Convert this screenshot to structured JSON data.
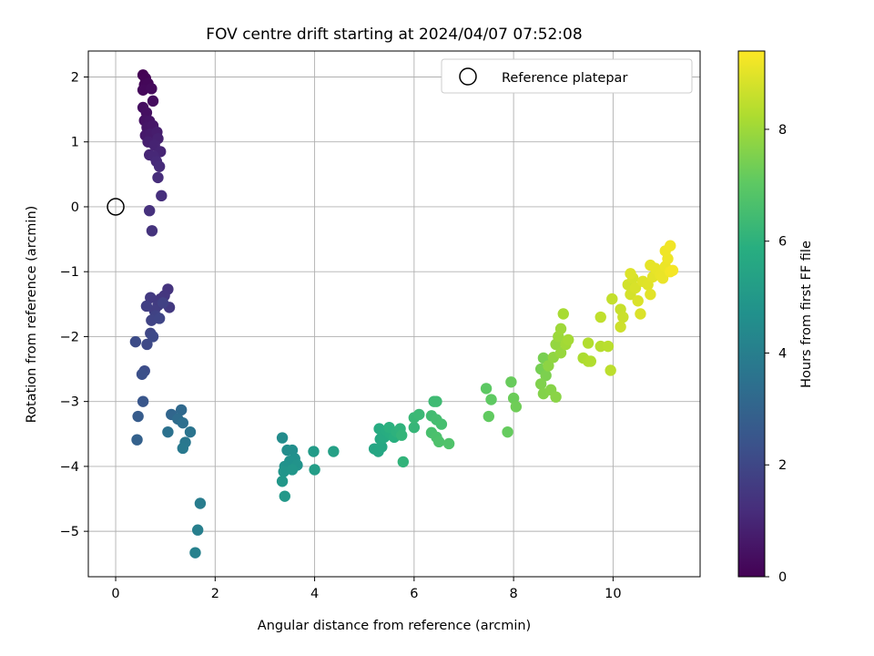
{
  "chart_data": {
    "type": "scatter",
    "title": "FOV centre drift starting at 2024/04/07 07:52:08",
    "xlabel": "Angular distance from reference (arcmin)",
    "ylabel": "Rotation from reference (arcmin)",
    "xlim": [
      -0.55,
      11.75
    ],
    "ylim": [
      -5.7,
      2.4
    ],
    "xticks": [
      0,
      2,
      4,
      6,
      8,
      10
    ],
    "yticks": [
      -5,
      -4,
      -3,
      -2,
      -1,
      0,
      1,
      2
    ],
    "xtick_labels": [
      "0",
      "2",
      "4",
      "6",
      "8",
      "10"
    ],
    "ytick_labels": [
      "−5",
      "−4",
      "−3",
      "−2",
      "−1",
      "0",
      "1",
      "2"
    ],
    "grid": true,
    "legend": {
      "position": "top-right",
      "label": "Reference platepar"
    },
    "reference_point": {
      "x": 0,
      "y": 0
    },
    "colorbar": {
      "label": "Hours from first FF file",
      "colormap": "viridis",
      "range": [
        0,
        9.4
      ],
      "ticks": [
        0,
        2,
        4,
        6,
        8
      ],
      "tick_labels": [
        "0",
        "2",
        "4",
        "6",
        "8"
      ]
    },
    "points": [
      {
        "x": 0.55,
        "y": 2.03,
        "t": 0.0
      },
      {
        "x": 0.6,
        "y": 1.98,
        "t": 0.05
      },
      {
        "x": 0.58,
        "y": 1.88,
        "t": 0.1
      },
      {
        "x": 0.65,
        "y": 1.9,
        "t": 0.15
      },
      {
        "x": 0.55,
        "y": 1.8,
        "t": 0.2
      },
      {
        "x": 0.72,
        "y": 1.82,
        "t": 0.25
      },
      {
        "x": 0.75,
        "y": 1.63,
        "t": 0.3
      },
      {
        "x": 0.55,
        "y": 1.53,
        "t": 0.35
      },
      {
        "x": 0.62,
        "y": 1.45,
        "t": 0.4
      },
      {
        "x": 0.58,
        "y": 1.33,
        "t": 0.45
      },
      {
        "x": 0.68,
        "y": 1.32,
        "t": 0.5
      },
      {
        "x": 0.63,
        "y": 1.22,
        "t": 0.55
      },
      {
        "x": 0.75,
        "y": 1.25,
        "t": 0.6
      },
      {
        "x": 0.6,
        "y": 1.1,
        "t": 0.65
      },
      {
        "x": 0.7,
        "y": 1.12,
        "t": 0.7
      },
      {
        "x": 0.83,
        "y": 1.15,
        "t": 0.75
      },
      {
        "x": 0.65,
        "y": 1.0,
        "t": 0.8
      },
      {
        "x": 0.85,
        "y": 1.05,
        "t": 0.85
      },
      {
        "x": 0.78,
        "y": 0.95,
        "t": 0.9
      },
      {
        "x": 0.9,
        "y": 0.85,
        "t": 0.95
      },
      {
        "x": 0.68,
        "y": 0.8,
        "t": 1.0
      },
      {
        "x": 0.76,
        "y": 0.78,
        "t": 1.05
      },
      {
        "x": 0.82,
        "y": 0.7,
        "t": 1.1
      },
      {
        "x": 0.88,
        "y": 0.62,
        "t": 1.15
      },
      {
        "x": 0.85,
        "y": 0.45,
        "t": 1.2
      },
      {
        "x": 0.92,
        "y": 0.17,
        "t": 1.25
      },
      {
        "x": 0.68,
        "y": -0.06,
        "t": 1.3
      },
      {
        "x": 0.73,
        "y": -0.37,
        "t": 1.35
      },
      {
        "x": 1.05,
        "y": -1.27,
        "t": 1.4
      },
      {
        "x": 0.98,
        "y": -1.37,
        "t": 1.45
      },
      {
        "x": 0.9,
        "y": -1.42,
        "t": 1.5
      },
      {
        "x": 1.08,
        "y": -1.55,
        "t": 1.55
      },
      {
        "x": 0.7,
        "y": -1.4,
        "t": 1.6
      },
      {
        "x": 0.85,
        "y": -1.52,
        "t": 1.65
      },
      {
        "x": 0.78,
        "y": -1.6,
        "t": 1.7
      },
      {
        "x": 0.62,
        "y": -1.53,
        "t": 1.75
      },
      {
        "x": 0.95,
        "y": -1.48,
        "t": 1.8
      },
      {
        "x": 0.8,
        "y": -1.68,
        "t": 1.85
      },
      {
        "x": 0.72,
        "y": -1.75,
        "t": 1.9
      },
      {
        "x": 0.88,
        "y": -1.72,
        "t": 1.95
      },
      {
        "x": 0.7,
        "y": -1.95,
        "t": 2.0
      },
      {
        "x": 0.63,
        "y": -2.12,
        "t": 2.05
      },
      {
        "x": 0.75,
        "y": -2.0,
        "t": 2.1
      },
      {
        "x": 0.4,
        "y": -2.08,
        "t": 2.15
      },
      {
        "x": 0.58,
        "y": -2.53,
        "t": 2.2
      },
      {
        "x": 0.53,
        "y": -2.58,
        "t": 2.3
      },
      {
        "x": 0.55,
        "y": -3.0,
        "t": 2.5
      },
      {
        "x": 0.45,
        "y": -3.23,
        "t": 2.7
      },
      {
        "x": 0.43,
        "y": -3.59,
        "t": 2.9
      },
      {
        "x": 1.12,
        "y": -3.2,
        "t": 3.1
      },
      {
        "x": 1.32,
        "y": -3.13,
        "t": 3.2
      },
      {
        "x": 1.25,
        "y": -3.27,
        "t": 3.3
      },
      {
        "x": 1.35,
        "y": -3.33,
        "t": 3.4
      },
      {
        "x": 1.05,
        "y": -3.47,
        "t": 3.5
      },
      {
        "x": 1.5,
        "y": -3.47,
        "t": 3.6
      },
      {
        "x": 1.4,
        "y": -3.63,
        "t": 3.7
      },
      {
        "x": 1.35,
        "y": -3.72,
        "t": 3.8
      },
      {
        "x": 1.7,
        "y": -4.57,
        "t": 3.9
      },
      {
        "x": 1.65,
        "y": -4.98,
        "t": 4.0
      },
      {
        "x": 1.6,
        "y": -5.33,
        "t": 4.1
      },
      {
        "x": 3.35,
        "y": -3.56,
        "t": 4.5
      },
      {
        "x": 3.45,
        "y": -3.75,
        "t": 4.55
      },
      {
        "x": 3.55,
        "y": -3.75,
        "t": 4.6
      },
      {
        "x": 3.6,
        "y": -3.88,
        "t": 4.65
      },
      {
        "x": 3.5,
        "y": -3.92,
        "t": 4.7
      },
      {
        "x": 3.4,
        "y": -4.0,
        "t": 4.75
      },
      {
        "x": 3.65,
        "y": -3.98,
        "t": 4.8
      },
      {
        "x": 3.38,
        "y": -4.08,
        "t": 4.85
      },
      {
        "x": 3.55,
        "y": -4.05,
        "t": 4.9
      },
      {
        "x": 3.35,
        "y": -4.23,
        "t": 4.95
      },
      {
        "x": 3.4,
        "y": -4.46,
        "t": 5.0
      },
      {
        "x": 3.98,
        "y": -3.77,
        "t": 5.1
      },
      {
        "x": 4.0,
        "y": -4.05,
        "t": 5.2
      },
      {
        "x": 4.38,
        "y": -3.77,
        "t": 5.3
      },
      {
        "x": 5.2,
        "y": -3.73,
        "t": 5.5
      },
      {
        "x": 5.28,
        "y": -3.77,
        "t": 5.55
      },
      {
        "x": 5.35,
        "y": -3.7,
        "t": 5.6
      },
      {
        "x": 5.32,
        "y": -3.58,
        "t": 5.65
      },
      {
        "x": 5.4,
        "y": -3.55,
        "t": 5.7
      },
      {
        "x": 5.3,
        "y": -3.42,
        "t": 5.75
      },
      {
        "x": 5.45,
        "y": -3.45,
        "t": 5.8
      },
      {
        "x": 5.52,
        "y": -3.5,
        "t": 5.85
      },
      {
        "x": 5.6,
        "y": -3.55,
        "t": 5.9
      },
      {
        "x": 5.5,
        "y": -3.4,
        "t": 5.95
      },
      {
        "x": 5.65,
        "y": -3.47,
        "t": 6.0
      },
      {
        "x": 5.72,
        "y": -3.42,
        "t": 6.05
      },
      {
        "x": 5.78,
        "y": -3.93,
        "t": 6.1
      },
      {
        "x": 5.75,
        "y": -3.52,
        "t": 6.15
      },
      {
        "x": 6.0,
        "y": -3.4,
        "t": 6.2
      },
      {
        "x": 6.0,
        "y": -3.25,
        "t": 6.25
      },
      {
        "x": 6.1,
        "y": -3.2,
        "t": 6.3
      },
      {
        "x": 6.4,
        "y": -3.0,
        "t": 6.35
      },
      {
        "x": 6.45,
        "y": -3.0,
        "t": 6.4
      },
      {
        "x": 6.35,
        "y": -3.22,
        "t": 6.45
      },
      {
        "x": 6.45,
        "y": -3.28,
        "t": 6.5
      },
      {
        "x": 6.55,
        "y": -3.35,
        "t": 6.55
      },
      {
        "x": 6.35,
        "y": -3.48,
        "t": 6.6
      },
      {
        "x": 6.45,
        "y": -3.55,
        "t": 6.65
      },
      {
        "x": 6.5,
        "y": -3.62,
        "t": 6.7
      },
      {
        "x": 6.7,
        "y": -3.65,
        "t": 6.75
      },
      {
        "x": 7.45,
        "y": -2.8,
        "t": 7.0
      },
      {
        "x": 7.55,
        "y": -2.97,
        "t": 7.05
      },
      {
        "x": 7.5,
        "y": -3.23,
        "t": 7.1
      },
      {
        "x": 7.88,
        "y": -3.47,
        "t": 7.15
      },
      {
        "x": 7.95,
        "y": -2.7,
        "t": 7.2
      },
      {
        "x": 8.0,
        "y": -2.95,
        "t": 7.25
      },
      {
        "x": 8.05,
        "y": -3.08,
        "t": 7.3
      },
      {
        "x": 8.55,
        "y": -2.5,
        "t": 7.4
      },
      {
        "x": 8.6,
        "y": -2.33,
        "t": 7.45
      },
      {
        "x": 8.65,
        "y": -2.6,
        "t": 7.5
      },
      {
        "x": 8.55,
        "y": -2.73,
        "t": 7.55
      },
      {
        "x": 8.6,
        "y": -2.88,
        "t": 7.6
      },
      {
        "x": 8.75,
        "y": -2.82,
        "t": 7.65
      },
      {
        "x": 8.85,
        "y": -2.93,
        "t": 7.7
      },
      {
        "x": 8.7,
        "y": -2.45,
        "t": 7.75
      },
      {
        "x": 8.8,
        "y": -2.32,
        "t": 7.8
      },
      {
        "x": 8.85,
        "y": -2.12,
        "t": 7.85
      },
      {
        "x": 8.95,
        "y": -2.25,
        "t": 7.9
      },
      {
        "x": 8.9,
        "y": -2.0,
        "t": 7.95
      },
      {
        "x": 8.95,
        "y": -1.88,
        "t": 8.0
      },
      {
        "x": 9.05,
        "y": -2.12,
        "t": 8.05
      },
      {
        "x": 9.1,
        "y": -2.05,
        "t": 8.1
      },
      {
        "x": 9.0,
        "y": -1.65,
        "t": 8.15
      },
      {
        "x": 9.4,
        "y": -2.33,
        "t": 8.2
      },
      {
        "x": 9.5,
        "y": -2.38,
        "t": 8.25
      },
      {
        "x": 9.55,
        "y": -2.38,
        "t": 8.28
      },
      {
        "x": 9.5,
        "y": -2.1,
        "t": 8.3
      },
      {
        "x": 9.75,
        "y": -2.15,
        "t": 8.35
      },
      {
        "x": 9.9,
        "y": -2.15,
        "t": 8.4
      },
      {
        "x": 9.95,
        "y": -2.52,
        "t": 8.45
      },
      {
        "x": 9.75,
        "y": -1.7,
        "t": 8.5
      },
      {
        "x": 9.98,
        "y": -1.42,
        "t": 8.55
      },
      {
        "x": 10.15,
        "y": -1.58,
        "t": 8.6
      },
      {
        "x": 10.2,
        "y": -1.7,
        "t": 8.65
      },
      {
        "x": 10.15,
        "y": -1.85,
        "t": 8.7
      },
      {
        "x": 10.3,
        "y": -1.2,
        "t": 8.75
      },
      {
        "x": 10.35,
        "y": -1.35,
        "t": 8.8
      },
      {
        "x": 10.4,
        "y": -1.1,
        "t": 8.82
      },
      {
        "x": 10.45,
        "y": -1.25,
        "t": 8.85
      },
      {
        "x": 10.5,
        "y": -1.45,
        "t": 8.88
      },
      {
        "x": 10.55,
        "y": -1.65,
        "t": 8.9
      },
      {
        "x": 10.35,
        "y": -1.03,
        "t": 8.92
      },
      {
        "x": 10.6,
        "y": -1.15,
        "t": 8.95
      },
      {
        "x": 10.7,
        "y": -1.2,
        "t": 8.98
      },
      {
        "x": 10.75,
        "y": -1.35,
        "t": 9.0
      },
      {
        "x": 10.8,
        "y": -1.08,
        "t": 9.02
      },
      {
        "x": 10.75,
        "y": -0.9,
        "t": 9.05
      },
      {
        "x": 10.85,
        "y": -0.95,
        "t": 9.08
      },
      {
        "x": 10.95,
        "y": -1.05,
        "t": 9.1
      },
      {
        "x": 11.0,
        "y": -1.1,
        "t": 9.12
      },
      {
        "x": 11.05,
        "y": -0.92,
        "t": 9.15
      },
      {
        "x": 11.1,
        "y": -0.8,
        "t": 9.18
      },
      {
        "x": 11.05,
        "y": -0.68,
        "t": 9.2
      },
      {
        "x": 11.15,
        "y": -0.6,
        "t": 9.22
      },
      {
        "x": 11.15,
        "y": -1.0,
        "t": 9.25
      },
      {
        "x": 11.2,
        "y": -0.98,
        "t": 9.28
      }
    ]
  }
}
